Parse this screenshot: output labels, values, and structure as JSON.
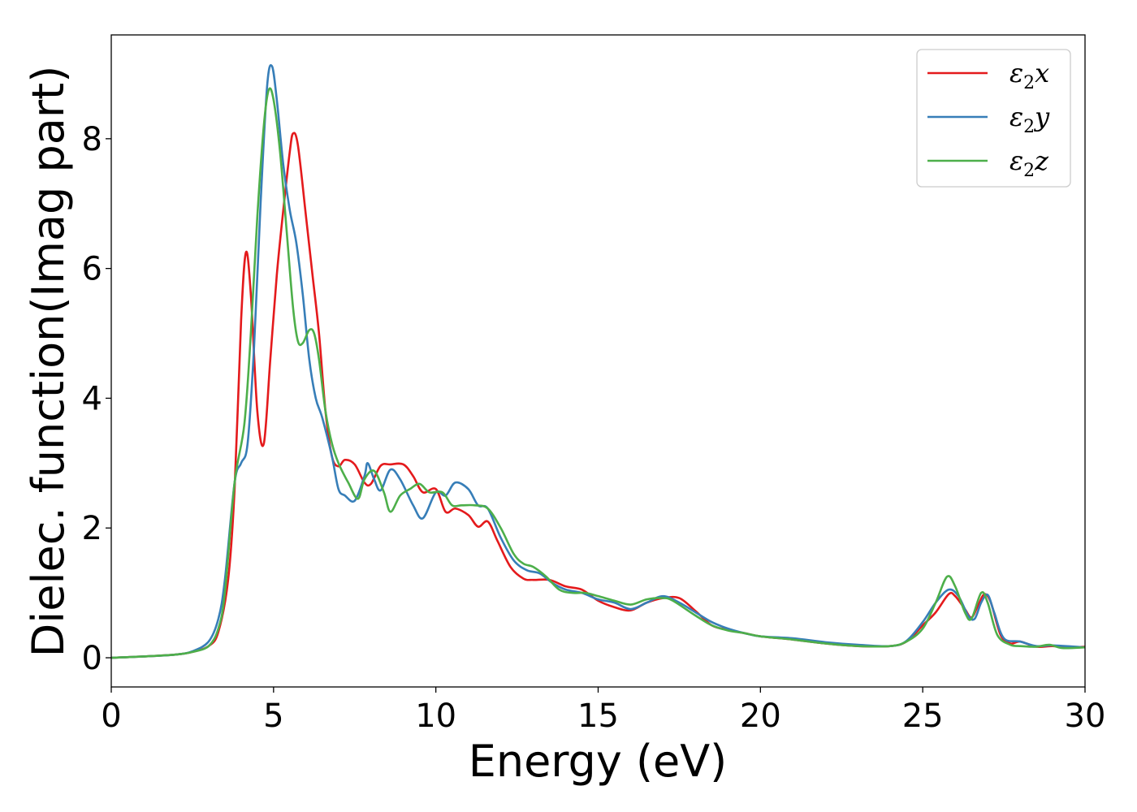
{
  "chart_data": {
    "type": "line",
    "title": "",
    "xlabel": "Energy (eV)",
    "ylabel": "Dielec. function(Imag part)",
    "xlim": [
      0,
      30
    ],
    "ylim": [
      -0.45,
      9.6
    ],
    "xticks": [
      0,
      5,
      10,
      15,
      20,
      25,
      30
    ],
    "yticks": [
      0,
      2,
      4,
      6,
      8
    ],
    "grid": false,
    "legend_position": "top-right",
    "series": [
      {
        "name": "ε₂x",
        "legend_base": "ε",
        "legend_sub": "2",
        "legend_suffix": "x",
        "color": "#e41a1c",
        "points": [
          [
            0,
            0.0
          ],
          [
            1,
            0.02
          ],
          [
            2,
            0.05
          ],
          [
            2.5,
            0.09
          ],
          [
            3,
            0.18
          ],
          [
            3.3,
            0.4
          ],
          [
            3.6,
            1.2
          ],
          [
            3.8,
            2.6
          ],
          [
            4.0,
            5.2
          ],
          [
            4.15,
            6.25
          ],
          [
            4.3,
            5.6
          ],
          [
            4.5,
            3.8
          ],
          [
            4.7,
            3.3
          ],
          [
            4.9,
            4.6
          ],
          [
            5.1,
            5.9
          ],
          [
            5.3,
            6.9
          ],
          [
            5.5,
            7.8
          ],
          [
            5.6,
            8.08
          ],
          [
            5.75,
            7.9
          ],
          [
            6.0,
            6.8
          ],
          [
            6.2,
            5.9
          ],
          [
            6.4,
            5.0
          ],
          [
            6.6,
            3.8
          ],
          [
            6.8,
            3.1
          ],
          [
            7.0,
            2.95
          ],
          [
            7.2,
            3.05
          ],
          [
            7.5,
            2.98
          ],
          [
            7.8,
            2.7
          ],
          [
            8.0,
            2.68
          ],
          [
            8.3,
            2.96
          ],
          [
            8.6,
            2.98
          ],
          [
            9.0,
            2.98
          ],
          [
            9.3,
            2.8
          ],
          [
            9.6,
            2.55
          ],
          [
            10.0,
            2.6
          ],
          [
            10.3,
            2.25
          ],
          [
            10.6,
            2.3
          ],
          [
            11.0,
            2.2
          ],
          [
            11.3,
            2.02
          ],
          [
            11.6,
            2.1
          ],
          [
            11.9,
            1.8
          ],
          [
            12.3,
            1.4
          ],
          [
            12.7,
            1.22
          ],
          [
            13.0,
            1.2
          ],
          [
            13.5,
            1.2
          ],
          [
            14.0,
            1.1
          ],
          [
            14.5,
            1.05
          ],
          [
            15.0,
            0.88
          ],
          [
            15.5,
            0.78
          ],
          [
            16.0,
            0.73
          ],
          [
            16.5,
            0.85
          ],
          [
            17.0,
            0.92
          ],
          [
            17.5,
            0.92
          ],
          [
            18.0,
            0.72
          ],
          [
            18.5,
            0.5
          ],
          [
            19.0,
            0.43
          ],
          [
            19.5,
            0.38
          ],
          [
            20.0,
            0.33
          ],
          [
            21.0,
            0.28
          ],
          [
            22.0,
            0.22
          ],
          [
            23.0,
            0.18
          ],
          [
            24.0,
            0.18
          ],
          [
            24.5,
            0.25
          ],
          [
            25.0,
            0.5
          ],
          [
            25.4,
            0.7
          ],
          [
            25.8,
            0.98
          ],
          [
            26.0,
            0.95
          ],
          [
            26.3,
            0.75
          ],
          [
            26.5,
            0.62
          ],
          [
            26.7,
            0.8
          ],
          [
            26.9,
            0.98
          ],
          [
            27.1,
            0.85
          ],
          [
            27.4,
            0.35
          ],
          [
            27.7,
            0.22
          ],
          [
            28.0,
            0.25
          ],
          [
            28.5,
            0.17
          ],
          [
            29.0,
            0.18
          ],
          [
            29.5,
            0.16
          ],
          [
            30.0,
            0.17
          ]
        ]
      },
      {
        "name": "ε₂y",
        "legend_base": "ε",
        "legend_sub": "2",
        "legend_suffix": "y",
        "color": "#377eb8",
        "points": [
          [
            0,
            0.0
          ],
          [
            1,
            0.02
          ],
          [
            2,
            0.05
          ],
          [
            2.5,
            0.1
          ],
          [
            3,
            0.25
          ],
          [
            3.3,
            0.6
          ],
          [
            3.5,
            1.2
          ],
          [
            3.8,
            2.7
          ],
          [
            4.0,
            3.0
          ],
          [
            4.2,
            3.3
          ],
          [
            4.4,
            4.8
          ],
          [
            4.6,
            7.0
          ],
          [
            4.8,
            8.8
          ],
          [
            4.95,
            9.12
          ],
          [
            5.1,
            8.6
          ],
          [
            5.3,
            7.6
          ],
          [
            5.5,
            6.9
          ],
          [
            5.7,
            6.4
          ],
          [
            5.9,
            5.6
          ],
          [
            6.1,
            4.6
          ],
          [
            6.3,
            4.0
          ],
          [
            6.5,
            3.7
          ],
          [
            6.8,
            3.1
          ],
          [
            7.0,
            2.6
          ],
          [
            7.2,
            2.5
          ],
          [
            7.5,
            2.42
          ],
          [
            7.8,
            2.8
          ],
          [
            7.9,
            3.0
          ],
          [
            8.1,
            2.75
          ],
          [
            8.3,
            2.58
          ],
          [
            8.6,
            2.9
          ],
          [
            8.9,
            2.75
          ],
          [
            9.3,
            2.35
          ],
          [
            9.6,
            2.15
          ],
          [
            10.0,
            2.55
          ],
          [
            10.3,
            2.5
          ],
          [
            10.6,
            2.7
          ],
          [
            11.0,
            2.6
          ],
          [
            11.3,
            2.35
          ],
          [
            11.6,
            2.3
          ],
          [
            12.0,
            1.85
          ],
          [
            12.4,
            1.5
          ],
          [
            12.8,
            1.35
          ],
          [
            13.2,
            1.3
          ],
          [
            13.6,
            1.15
          ],
          [
            14.0,
            1.05
          ],
          [
            14.5,
            1.0
          ],
          [
            15.0,
            0.9
          ],
          [
            15.5,
            0.85
          ],
          [
            16.0,
            0.75
          ],
          [
            16.5,
            0.85
          ],
          [
            17.0,
            0.95
          ],
          [
            17.5,
            0.85
          ],
          [
            18.0,
            0.7
          ],
          [
            18.5,
            0.55
          ],
          [
            19.0,
            0.45
          ],
          [
            19.5,
            0.38
          ],
          [
            20.0,
            0.33
          ],
          [
            21.0,
            0.3
          ],
          [
            22.0,
            0.24
          ],
          [
            23.0,
            0.2
          ],
          [
            24.0,
            0.18
          ],
          [
            24.5,
            0.26
          ],
          [
            25.0,
            0.55
          ],
          [
            25.4,
            0.85
          ],
          [
            25.8,
            1.05
          ],
          [
            26.1,
            0.95
          ],
          [
            26.4,
            0.65
          ],
          [
            26.6,
            0.6
          ],
          [
            26.8,
            0.85
          ],
          [
            27.0,
            0.97
          ],
          [
            27.2,
            0.7
          ],
          [
            27.5,
            0.3
          ],
          [
            28.0,
            0.25
          ],
          [
            28.5,
            0.18
          ],
          [
            29.0,
            0.19
          ],
          [
            30.0,
            0.16
          ]
        ]
      },
      {
        "name": "ε₂z",
        "legend_base": "ε",
        "legend_sub": "2",
        "legend_suffix": "z",
        "color": "#4daf4a",
        "points": [
          [
            0,
            0.0
          ],
          [
            1,
            0.02
          ],
          [
            2,
            0.05
          ],
          [
            2.5,
            0.09
          ],
          [
            3,
            0.18
          ],
          [
            3.3,
            0.45
          ],
          [
            3.5,
            1.0
          ],
          [
            3.8,
            2.7
          ],
          [
            4.1,
            3.6
          ],
          [
            4.3,
            5.0
          ],
          [
            4.5,
            6.8
          ],
          [
            4.7,
            8.2
          ],
          [
            4.85,
            8.75
          ],
          [
            5.0,
            8.6
          ],
          [
            5.2,
            7.8
          ],
          [
            5.4,
            6.6
          ],
          [
            5.6,
            5.4
          ],
          [
            5.75,
            4.88
          ],
          [
            5.9,
            4.85
          ],
          [
            6.1,
            5.05
          ],
          [
            6.25,
            5.0
          ],
          [
            6.4,
            4.6
          ],
          [
            6.6,
            3.8
          ],
          [
            6.8,
            3.3
          ],
          [
            7.0,
            3.0
          ],
          [
            7.3,
            2.7
          ],
          [
            7.6,
            2.45
          ],
          [
            7.8,
            2.75
          ],
          [
            8.1,
            2.88
          ],
          [
            8.4,
            2.55
          ],
          [
            8.6,
            2.25
          ],
          [
            8.9,
            2.5
          ],
          [
            9.2,
            2.6
          ],
          [
            9.5,
            2.68
          ],
          [
            9.8,
            2.55
          ],
          [
            10.2,
            2.55
          ],
          [
            10.5,
            2.35
          ],
          [
            10.8,
            2.35
          ],
          [
            11.2,
            2.35
          ],
          [
            11.6,
            2.3
          ],
          [
            12.0,
            2.0
          ],
          [
            12.4,
            1.6
          ],
          [
            12.7,
            1.45
          ],
          [
            13.0,
            1.4
          ],
          [
            13.4,
            1.25
          ],
          [
            13.8,
            1.05
          ],
          [
            14.2,
            1.0
          ],
          [
            14.6,
            1.0
          ],
          [
            15.0,
            0.95
          ],
          [
            15.5,
            0.88
          ],
          [
            16.0,
            0.82
          ],
          [
            16.5,
            0.9
          ],
          [
            17.0,
            0.92
          ],
          [
            17.3,
            0.88
          ],
          [
            18.0,
            0.65
          ],
          [
            18.5,
            0.5
          ],
          [
            19.0,
            0.42
          ],
          [
            19.5,
            0.38
          ],
          [
            20.0,
            0.33
          ],
          [
            21.0,
            0.28
          ],
          [
            22.0,
            0.22
          ],
          [
            23.0,
            0.18
          ],
          [
            24.0,
            0.18
          ],
          [
            24.5,
            0.25
          ],
          [
            25.0,
            0.45
          ],
          [
            25.4,
            0.85
          ],
          [
            25.75,
            1.25
          ],
          [
            26.0,
            1.1
          ],
          [
            26.3,
            0.7
          ],
          [
            26.5,
            0.6
          ],
          [
            26.8,
            1.0
          ],
          [
            27.0,
            0.85
          ],
          [
            27.3,
            0.35
          ],
          [
            27.7,
            0.2
          ],
          [
            28.0,
            0.18
          ],
          [
            28.5,
            0.17
          ],
          [
            28.9,
            0.2
          ],
          [
            29.3,
            0.15
          ],
          [
            30.0,
            0.16
          ]
        ]
      }
    ]
  }
}
